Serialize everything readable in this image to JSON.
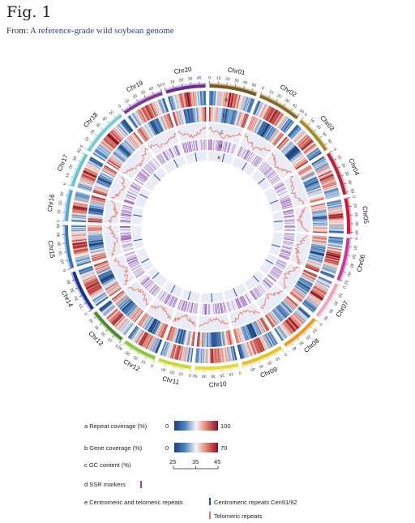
{
  "figure": {
    "label": "Fig. 1",
    "from_prefix": "From: ",
    "source_title": "A reference-grade wild soybean genome"
  },
  "chromosomes": [
    {
      "name": "Chr01",
      "length": 56,
      "ticks": [
        0,
        10,
        20,
        30,
        40,
        50
      ],
      "color": "#7a5a1e"
    },
    {
      "name": "Chr02",
      "length": 51,
      "ticks": [
        0,
        10,
        20,
        30,
        40,
        50
      ],
      "color": "#8b6b2a"
    },
    {
      "name": "Chr03",
      "length": 46,
      "ticks": [
        0,
        10,
        20,
        30,
        40
      ],
      "color": "#a58a2a"
    },
    {
      "name": "Chr04",
      "length": 52,
      "ticks": [
        0,
        10,
        20,
        30,
        40,
        50
      ],
      "color": "#b4233a"
    },
    {
      "name": "Chr05",
      "length": 42,
      "ticks": [
        0,
        10,
        20,
        30,
        40
      ],
      "color": "#c8193c"
    },
    {
      "name": "Chr06",
      "length": 51,
      "ticks": [
        0,
        10,
        20,
        30,
        40,
        50
      ],
      "color": "#c23e9d"
    },
    {
      "name": "Chr07",
      "length": 44,
      "ticks": [
        0,
        10,
        20,
        30,
        40
      ],
      "color": "#e8a7bd"
    },
    {
      "name": "Chr08",
      "length": 47,
      "ticks": [
        0,
        10,
        20,
        30,
        40
      ],
      "color": "#e89a2a"
    },
    {
      "name": "Chr09",
      "length": 50,
      "ticks": [
        0,
        10,
        20,
        30,
        40
      ],
      "color": "#e7c12a"
    },
    {
      "name": "Chr10",
      "length": 51,
      "ticks": [
        0,
        10,
        20,
        30,
        40,
        50
      ],
      "color": "#e2dc3a"
    },
    {
      "name": "Chr11",
      "length": 39,
      "ticks": [
        0,
        10,
        20,
        30
      ],
      "color": "#c7d93b"
    },
    {
      "name": "Chr12",
      "length": 40,
      "ticks": [
        0,
        10,
        20,
        30,
        40
      ],
      "color": "#8cc63f"
    },
    {
      "name": "Chr13",
      "length": 45,
      "ticks": [
        0,
        10,
        20,
        30,
        40
      ],
      "color": "#4c8a2e"
    },
    {
      "name": "Chr14",
      "length": 49,
      "ticks": [
        0,
        10,
        20,
        30,
        40
      ],
      "color": "#1b2f8f"
    },
    {
      "name": "Chr15",
      "length": 51,
      "ticks": [
        0,
        10,
        20,
        30,
        40,
        50
      ],
      "color": "#3a73b8"
    },
    {
      "name": "Chr16",
      "length": 37,
      "ticks": [
        0,
        10,
        20,
        30
      ],
      "color": "#5aa6d6"
    },
    {
      "name": "Chr17",
      "length": 41,
      "ticks": [
        0,
        10,
        20,
        30,
        40
      ],
      "color": "#6cc3c8"
    },
    {
      "name": "Chr18",
      "length": 57,
      "ticks": [
        0,
        10,
        20,
        30,
        40,
        50
      ],
      "color": "#79cbd5"
    },
    {
      "name": "Chr19",
      "length": 50,
      "ticks": [
        0,
        10,
        20,
        30,
        40,
        50
      ],
      "color": "#7b3f98"
    },
    {
      "name": "Chr20",
      "length": 47,
      "ticks": [
        0,
        10,
        20,
        30,
        40
      ],
      "color": "#6a2c8f"
    }
  ],
  "track_letters": [
    "a",
    "b",
    "c",
    "d",
    "e"
  ],
  "legend": {
    "repeat": {
      "label": "a  Repeat coverage (%)",
      "min": "0",
      "max": "100"
    },
    "gene": {
      "label": "b  Gene coverage (%)",
      "min": "0",
      "max": "70"
    },
    "gc": {
      "label": "c  GC content (%)",
      "ticks": [
        "25",
        "35",
        "45"
      ]
    },
    "ssr": {
      "label": "d  SSR markers"
    },
    "repeats": {
      "label": "e  Centromeric and telomeric repeats",
      "centromeric": "Centromeric repeats Cen91/92",
      "telomeric": "Telomeric repeats"
    }
  },
  "colors": {
    "blue_dark": "#1c3f7a",
    "white": "#f7f4f2",
    "red_dark": "#8c1025",
    "gc_line": "#e8765a",
    "ssr": "#8e44ad",
    "centromeric": "#2f4f9e",
    "telomeric": "#e8765a",
    "track_bg": "#e9ebf7"
  }
}
